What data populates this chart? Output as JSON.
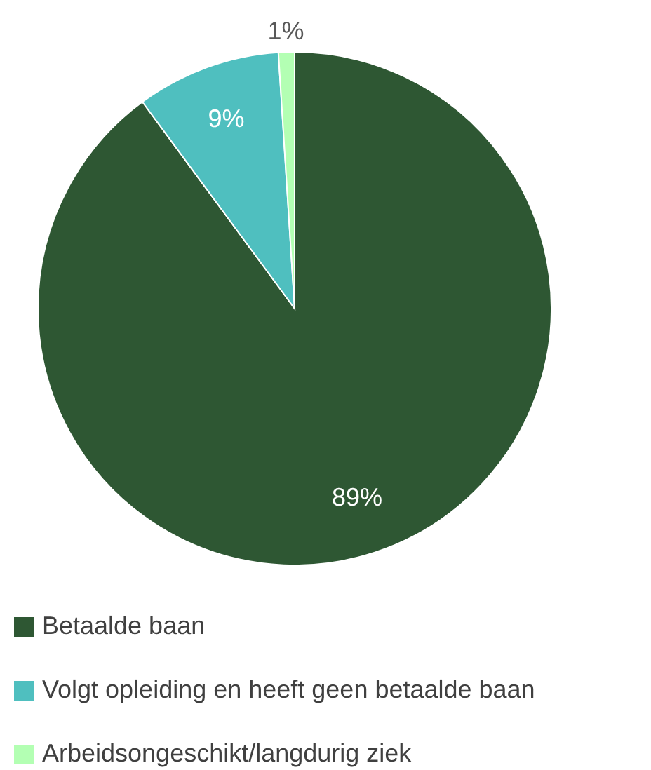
{
  "chart_data": {
    "type": "pie",
    "categories": [
      "Betaalde baan",
      "Volgt opleiding en heeft geen betaalde baan",
      "Arbeidsongeschikt/langdurig ziek"
    ],
    "values": [
      89,
      9,
      1
    ],
    "colors": [
      "#2e5733",
      "#4fbfbf",
      "#b3ffb3"
    ],
    "value_labels": [
      "89%",
      "9%",
      "1%"
    ],
    "legend": "bottom"
  }
}
